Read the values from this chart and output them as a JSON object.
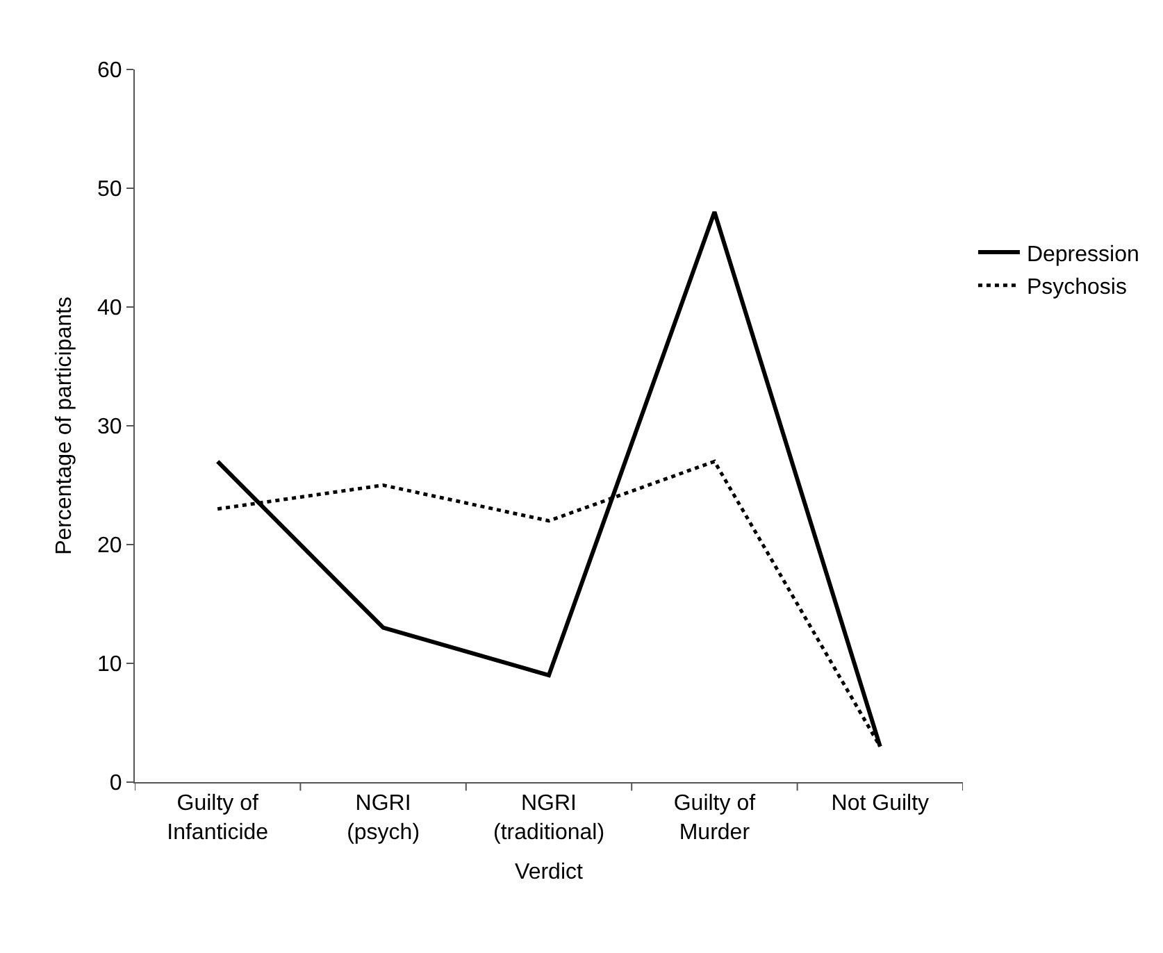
{
  "chart_data": {
    "type": "line",
    "xlabel": "Verdict",
    "ylabel": "Percentage of participants",
    "categories": [
      "Guilty of Infanticide",
      "NGRI (psych)",
      "NGRI (traditional)",
      "Guilty of Murder",
      "Not Guilty"
    ],
    "series": [
      {
        "name": "Depression",
        "color": "#000000",
        "line_style": "solid",
        "values": [
          27,
          13,
          9,
          48,
          3
        ]
      },
      {
        "name": "Psychosis",
        "color": "#000000",
        "line_style": "dotted",
        "values": [
          23,
          25,
          22,
          27,
          3
        ]
      }
    ],
    "ylim": [
      0,
      60
    ],
    "yticks": [
      0,
      10,
      20,
      30,
      40,
      50,
      60
    ],
    "grid": false,
    "legend": "right",
    "marker": "none"
  }
}
